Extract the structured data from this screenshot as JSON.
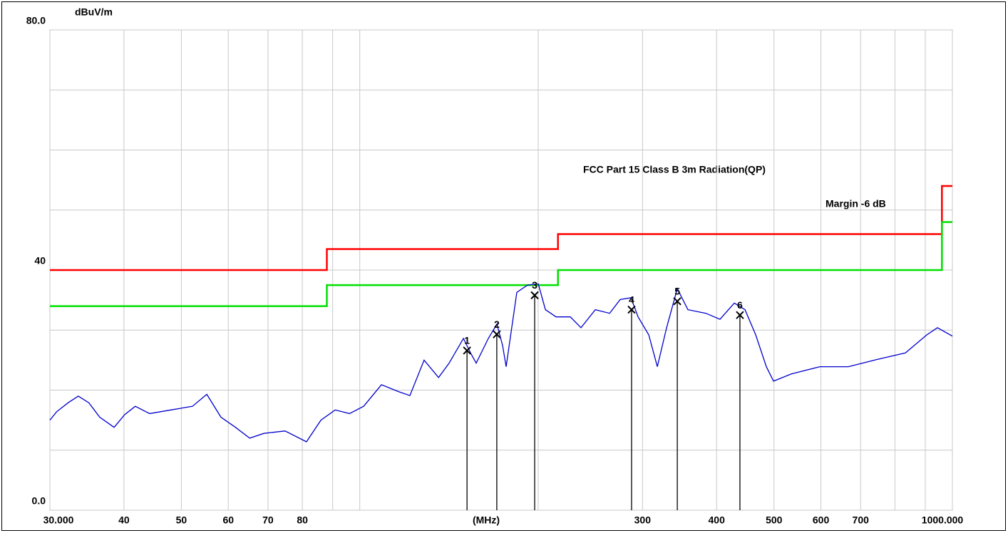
{
  "chart_data": {
    "type": "line",
    "y_label": "dBuV/m",
    "x_label": "(MHz)",
    "xscale": "log",
    "xlim": [
      30,
      1000
    ],
    "ylim": [
      0,
      80
    ],
    "xticks": [
      {
        "value": 30,
        "label": "30.000"
      },
      40,
      50,
      60,
      70,
      80,
      300,
      400,
      500,
      600,
      700,
      {
        "value": 1000,
        "label": "1000.000"
      }
    ],
    "x_minor_grid": [
      90,
      100,
      200,
      800,
      900
    ],
    "yticks": [
      {
        "value": 0,
        "label": "0.0"
      },
      40,
      {
        "value": 80,
        "label": "80.0"
      }
    ],
    "y_minor_grid": [
      10,
      20,
      30,
      50,
      60,
      70
    ],
    "grid": true,
    "series": [
      {
        "name": "FCC Part 15  Class B 3m Radiation(QP)",
        "color": "#ff0000",
        "x": [
          30,
          88,
          88,
          216,
          216,
          960,
          960,
          1000
        ],
        "values": [
          40,
          40,
          43.5,
          43.5,
          46,
          46,
          54,
          54
        ]
      },
      {
        "name": "Margin -6 dB",
        "color": "#00e000",
        "x": [
          30,
          88,
          88,
          216,
          216,
          960,
          960,
          1000
        ],
        "values": [
          34,
          34,
          37.5,
          37.5,
          40,
          40,
          48,
          48
        ]
      },
      {
        "color": "#0000cc",
        "x": [
          30,
          30.8,
          32.2,
          33.5,
          34.9,
          36.4,
          38.5,
          40.1,
          41.8,
          44.2,
          48.0,
          52.2,
          55.2,
          58.3,
          61.7,
          65.2,
          68.9,
          74.8,
          81.3,
          86.0,
          90.9,
          96.1,
          101.5,
          108.8,
          116.6,
          121.5,
          128.4,
          135.8,
          141.5,
          149.6,
          153.8,
          157.2,
          164.8,
          170.4,
          174.2,
          176.6,
          184.1,
          191.9,
          200.1,
          205.7,
          214.4,
          226.6,
          236.2,
          249.7,
          264.0,
          275.1,
          286.8,
          294.9,
          307.4,
          317.8,
          329.4,
          343.4,
          357.9,
          383.8,
          405.4,
          428.6,
          446.7,
          465.7,
          485.4,
          499.1,
          534.9,
          597.5,
          667.6,
          745.9,
          833.2,
          905.1,
          943.5,
          1000
        ],
        "values": [
          15.0,
          16.4,
          17.9,
          19.0,
          17.9,
          15.5,
          13.8,
          15.9,
          17.3,
          16.1,
          16.7,
          17.3,
          19.3,
          15.5,
          13.8,
          12.0,
          12.8,
          13.2,
          11.4,
          15.0,
          16.7,
          16.1,
          17.3,
          20.9,
          19.7,
          19.1,
          25.0,
          22.1,
          24.5,
          28.6,
          26.2,
          24.5,
          28.6,
          31.0,
          27.4,
          23.9,
          36.3,
          37.5,
          37.7,
          33.4,
          32.2,
          32.2,
          30.4,
          33.4,
          32.8,
          35.1,
          35.4,
          32.2,
          29.2,
          23.9,
          30.4,
          36.9,
          33.4,
          32.8,
          31.8,
          34.5,
          33.4,
          29.2,
          23.9,
          21.5,
          22.7,
          23.9,
          23.9,
          25.1,
          26.2,
          29.2,
          30.4,
          29.0
        ]
      }
    ],
    "markers": {
      "color": "#000000",
      "labels": [
        "1",
        "2",
        "3",
        "4",
        "5",
        "6"
      ],
      "x": [
        151.7,
        170.3,
        197.3,
        287.5,
        343.4,
        438.0
      ],
      "values": [
        26.6,
        29.3,
        35.8,
        33.4,
        34.8,
        32.5
      ]
    }
  }
}
